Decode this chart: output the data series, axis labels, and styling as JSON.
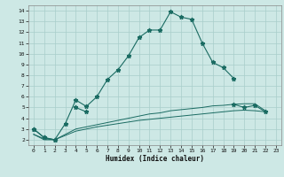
{
  "xlabel": "Humidex (Indice chaleur)",
  "x": [
    0,
    1,
    2,
    3,
    4,
    5,
    6,
    7,
    8,
    9,
    10,
    11,
    12,
    13,
    14,
    15,
    16,
    17,
    18,
    19,
    20,
    21,
    22,
    23
  ],
  "line1": [
    3.0,
    2.2,
    2.0,
    3.5,
    5.7,
    5.1,
    6.0,
    7.6,
    8.5,
    9.8,
    11.5,
    12.2,
    12.2,
    13.9,
    13.4,
    13.2,
    11.0,
    9.2,
    8.7,
    7.7,
    null,
    null,
    null,
    null
  ],
  "line2": [
    3.0,
    2.2,
    2.0,
    null,
    5.0,
    4.6,
    null,
    null,
    null,
    null,
    null,
    null,
    null,
    null,
    null,
    null,
    null,
    null,
    null,
    5.3,
    5.0,
    5.2,
    4.6,
    null
  ],
  "line3": [
    2.5,
    2.1,
    2.0,
    2.5,
    3.0,
    3.2,
    3.4,
    3.6,
    3.8,
    4.0,
    4.2,
    4.4,
    4.5,
    4.7,
    4.8,
    4.9,
    5.0,
    5.15,
    5.2,
    5.3,
    5.35,
    5.35,
    4.7,
    null
  ],
  "line4": [
    2.5,
    2.0,
    2.0,
    2.4,
    2.8,
    3.0,
    3.2,
    3.35,
    3.5,
    3.65,
    3.8,
    3.9,
    4.0,
    4.1,
    4.2,
    4.3,
    4.4,
    4.5,
    4.6,
    4.7,
    4.75,
    4.7,
    4.6,
    null
  ],
  "bg_color": "#cde8e5",
  "grid_color": "#a8ceca",
  "line_color": "#1a6b62",
  "ylim": [
    1.5,
    14.5
  ],
  "xlim": [
    -0.5,
    23.5
  ],
  "yticks": [
    2,
    3,
    4,
    5,
    6,
    7,
    8,
    9,
    10,
    11,
    12,
    13,
    14
  ],
  "xticks": [
    0,
    1,
    2,
    3,
    4,
    5,
    6,
    7,
    8,
    9,
    10,
    11,
    12,
    13,
    14,
    15,
    16,
    17,
    18,
    19,
    20,
    21,
    22,
    23
  ]
}
